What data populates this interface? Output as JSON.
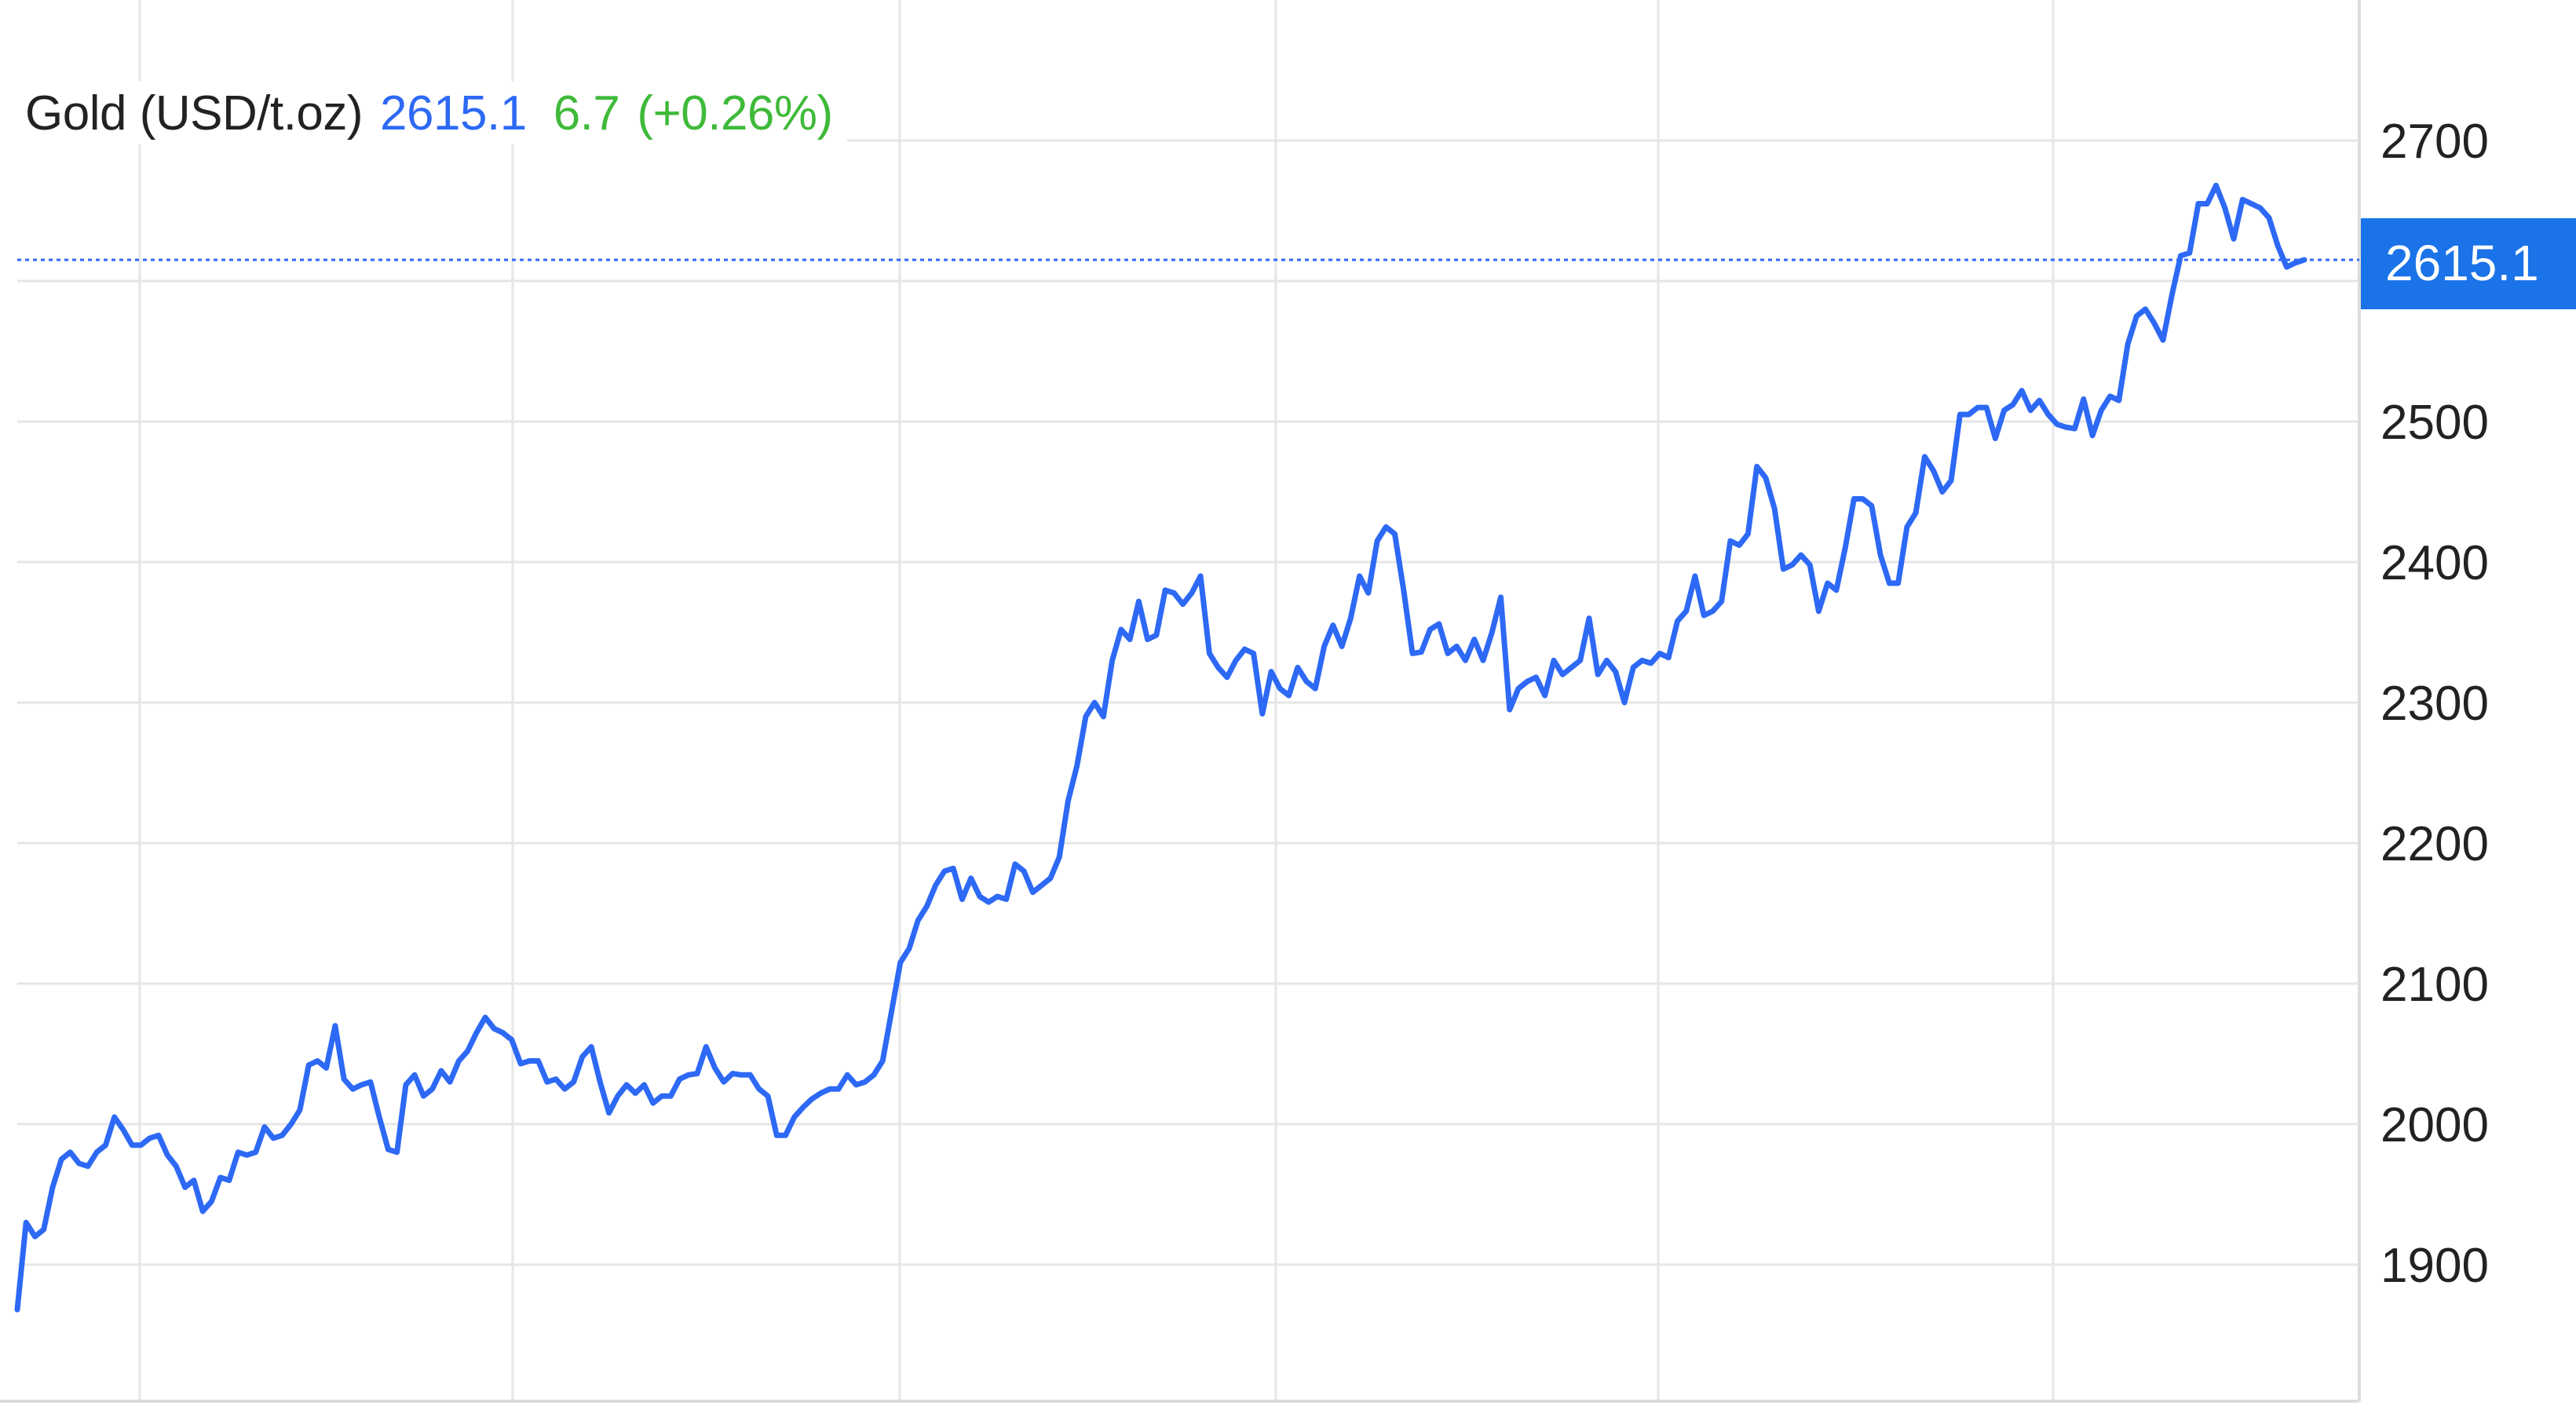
{
  "header": {
    "instrument": "Gold (USD/t.oz)",
    "price": "2615.1",
    "change": "6.7",
    "change_pct": "(+0.26%)"
  },
  "colors": {
    "line": "#2d69f5",
    "price_tag_bg": "#1a73e8",
    "up": "#3fba3a",
    "grid": "#e6e6e6"
  },
  "chart_data": {
    "type": "line",
    "title": "",
    "xlabel": "",
    "ylabel": "",
    "ylim": [
      1840,
      2760
    ],
    "y_ticks": [
      1900,
      2000,
      2100,
      2200,
      2300,
      2400,
      2500,
      2600,
      2700
    ],
    "y_tick_labels": [
      "1900",
      "2000",
      "2100",
      "2200",
      "2300",
      "2400",
      "2500",
      "",
      "2700"
    ],
    "grid": true,
    "axis_position": "right",
    "last_value": 2615.1,
    "last_value_label": "2615.1",
    "series": [
      {
        "values": [
          1868,
          1930,
          1920,
          1925,
          1955,
          1975,
          1980,
          1972,
          1970,
          1980,
          1985,
          2005,
          1996,
          1985,
          1985,
          1990,
          1992,
          1978,
          1970,
          1955,
          1960,
          1938,
          1945,
          1962,
          1960,
          1980,
          1978,
          1980,
          1998,
          1990,
          1992,
          2000,
          2010,
          2042,
          2045,
          2040,
          2070,
          2032,
          2025,
          2028,
          2030,
          2005,
          1982,
          1980,
          2028,
          2035,
          2020,
          2025,
          2038,
          2030,
          2045,
          2052,
          2065,
          2076,
          2068,
          2065,
          2060,
          2043,
          2045,
          2045,
          2030,
          2032,
          2025,
          2030,
          2048,
          2055,
          2030,
          2008,
          2020,
          2028,
          2022,
          2028,
          2015,
          2020,
          2020,
          2032,
          2035,
          2036,
          2055,
          2040,
          2030,
          2036,
          2035,
          2035,
          2025,
          2020,
          1992,
          1992,
          2005,
          2012,
          2018,
          2022,
          2025,
          2025,
          2035,
          2028,
          2030,
          2035,
          2045,
          2080,
          2115,
          2125,
          2145,
          2155,
          2170,
          2180,
          2182,
          2160,
          2175,
          2162,
          2158,
          2162,
          2160,
          2185,
          2180,
          2165,
          2170,
          2175,
          2190,
          2230,
          2255,
          2290,
          2300,
          2290,
          2330,
          2352,
          2345,
          2372,
          2345,
          2348,
          2380,
          2378,
          2370,
          2378,
          2390,
          2335,
          2325,
          2318,
          2330,
          2338,
          2335,
          2292,
          2322,
          2310,
          2305,
          2325,
          2315,
          2310,
          2340,
          2355,
          2340,
          2360,
          2390,
          2378,
          2415,
          2425,
          2420,
          2380,
          2335,
          2336,
          2352,
          2356,
          2335,
          2340,
          2330,
          2345,
          2330,
          2350,
          2375,
          2295,
          2310,
          2315,
          2318,
          2305,
          2330,
          2320,
          2325,
          2330,
          2360,
          2320,
          2330,
          2322,
          2300,
          2325,
          2330,
          2328,
          2335,
          2332,
          2358,
          2365,
          2390,
          2362,
          2365,
          2372,
          2415,
          2412,
          2420,
          2468,
          2460,
          2438,
          2395,
          2398,
          2405,
          2398,
          2365,
          2385,
          2380,
          2410,
          2445,
          2445,
          2440,
          2405,
          2385,
          2385,
          2425,
          2435,
          2475,
          2465,
          2450,
          2458,
          2505,
          2505,
          2510,
          2510,
          2488,
          2508,
          2512,
          2522,
          2508,
          2515,
          2505,
          2498,
          2496,
          2495,
          2516,
          2490,
          2508,
          2518,
          2515,
          2555,
          2575,
          2580,
          2570,
          2558,
          2590,
          2618,
          2620,
          2655,
          2655,
          2668,
          2652,
          2630,
          2658,
          2655,
          2652,
          2645,
          2625,
          2610,
          2613,
          2615.1
        ]
      }
    ]
  }
}
